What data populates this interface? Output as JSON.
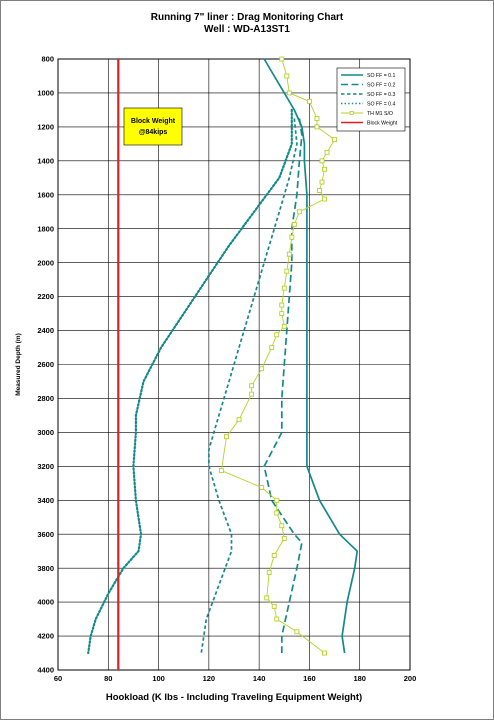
{
  "chart_data": {
    "type": "line",
    "title": "Running 7\" liner : Drag Monitoring Chart",
    "subtitle": "Well : WD-A13ST1",
    "xlabel": "Hookload (K lbs  - Including Traveling Equipment Weight)",
    "ylabel": "Measured Depth (m)",
    "xlim": [
      60,
      200
    ],
    "ylim": [
      800,
      4400
    ],
    "y_inverted": true,
    "x_ticks": [
      "60",
      "80",
      "100",
      "120",
      "140",
      "160",
      "180",
      "200"
    ],
    "y_ticks": [
      "800",
      "1000",
      "1200",
      "1400",
      "1600",
      "1800",
      "2000",
      "2200",
      "2400",
      "2600",
      "2800",
      "3000",
      "3200",
      "3400",
      "3600",
      "3800",
      "4000",
      "4200",
      "4400"
    ],
    "grid": true,
    "legend_position": "top-right",
    "annotation": {
      "line1": "Block Weight",
      "line2": "@84kips",
      "color": "#ffff00"
    },
    "colors": {
      "teal": "#138a8a",
      "actual": "#b5d12a",
      "block": "#e02020"
    },
    "series": [
      {
        "name": "SO FF = 0.1",
        "style": "solid",
        "color": "#138a8a",
        "points": [
          [
            142,
            800
          ],
          [
            146,
            900
          ],
          [
            150,
            1000
          ],
          [
            154,
            1100
          ],
          [
            157,
            1200
          ],
          [
            158,
            1300
          ],
          [
            158,
            1400
          ],
          [
            159,
            1600
          ],
          [
            159,
            1800
          ],
          [
            159,
            2000
          ],
          [
            159,
            2200
          ],
          [
            159,
            2400
          ],
          [
            159,
            2600
          ],
          [
            159,
            2800
          ],
          [
            159,
            3000
          ],
          [
            159,
            3200
          ],
          [
            164,
            3400
          ],
          [
            172,
            3600
          ],
          [
            179,
            3700
          ],
          [
            178,
            3800
          ],
          [
            175,
            4000
          ],
          [
            173,
            4200
          ],
          [
            174,
            4300
          ]
        ]
      },
      {
        "name": "SO FF = 0.2",
        "style": "dash",
        "color": "#138a8a",
        "points": [
          [
            156,
            1150
          ],
          [
            157,
            1250
          ],
          [
            156,
            1400
          ],
          [
            155,
            1600
          ],
          [
            153,
            1800
          ],
          [
            153,
            2000
          ],
          [
            152,
            2200
          ],
          [
            151,
            2400
          ],
          [
            150,
            2600
          ],
          [
            149,
            2800
          ],
          [
            149,
            3000
          ],
          [
            142,
            3200
          ],
          [
            145,
            3400
          ],
          [
            154,
            3600
          ],
          [
            157,
            3650
          ],
          [
            155,
            3800
          ],
          [
            152,
            4000
          ],
          [
            149,
            4200
          ],
          [
            149,
            4300
          ]
        ]
      },
      {
        "name": "SO FF = 0.3",
        "style": "shortdash",
        "color": "#138a8a",
        "points": [
          [
            154,
            1150
          ],
          [
            155,
            1300
          ],
          [
            152,
            1500
          ],
          [
            148,
            1700
          ],
          [
            144,
            1900
          ],
          [
            140,
            2100
          ],
          [
            136,
            2300
          ],
          [
            132,
            2500
          ],
          [
            128,
            2700
          ],
          [
            124,
            2900
          ],
          [
            120,
            3100
          ],
          [
            120,
            3200
          ],
          [
            124,
            3400
          ],
          [
            129,
            3600
          ],
          [
            129,
            3700
          ],
          [
            124,
            3900
          ],
          [
            119,
            4100
          ],
          [
            117,
            4300
          ]
        ]
      },
      {
        "name": "SO FF = 0.4",
        "style": "dot",
        "color": "#138a8a",
        "points": [
          [
            153,
            1100
          ],
          [
            153,
            1300
          ],
          [
            148,
            1500
          ],
          [
            138,
            1700
          ],
          [
            128,
            1900
          ],
          [
            119,
            2100
          ],
          [
            110,
            2300
          ],
          [
            101,
            2500
          ],
          [
            94,
            2700
          ],
          [
            91,
            2900
          ],
          [
            91,
            3000
          ],
          [
            90,
            3200
          ],
          [
            91,
            3400
          ],
          [
            93,
            3600
          ],
          [
            92,
            3700
          ],
          [
            86,
            3800
          ],
          [
            80,
            3950
          ],
          [
            75,
            4100
          ],
          [
            73,
            4200
          ],
          [
            72,
            4300
          ]
        ]
      },
      {
        "name": "TH M1 S/O",
        "style": "marker",
        "color": "#b5d12a",
        "points": [
          [
            149,
            800
          ],
          [
            151,
            900
          ],
          [
            152,
            1000
          ],
          [
            160,
            1050
          ],
          [
            163,
            1150
          ],
          [
            163,
            1200
          ],
          [
            170,
            1275
          ],
          [
            167,
            1350
          ],
          [
            165,
            1400
          ],
          [
            166,
            1450
          ],
          [
            165,
            1525
          ],
          [
            164,
            1575
          ],
          [
            166,
            1625
          ],
          [
            156,
            1700
          ],
          [
            154,
            1775
          ],
          [
            153,
            1850
          ],
          [
            152,
            1950
          ],
          [
            151,
            2050
          ],
          [
            150,
            2150
          ],
          [
            149,
            2250
          ],
          [
            149,
            2300
          ],
          [
            150,
            2375
          ],
          [
            147,
            2425
          ],
          [
            145,
            2500
          ],
          [
            141,
            2625
          ],
          [
            137,
            2725
          ],
          [
            137,
            2775
          ],
          [
            132,
            2925
          ],
          [
            127,
            3025
          ],
          [
            125,
            3225
          ],
          [
            141,
            3325
          ],
          [
            147,
            3400
          ],
          [
            147,
            3475
          ],
          [
            149,
            3550
          ],
          [
            150,
            3625
          ],
          [
            146,
            3725
          ],
          [
            144,
            3825
          ],
          [
            143,
            3975
          ],
          [
            146,
            4025
          ],
          [
            147,
            4100
          ],
          [
            155,
            4175
          ],
          [
            166,
            4300
          ]
        ]
      },
      {
        "name": "Block Weight",
        "style": "solid-red",
        "color": "#e02020",
        "points": [
          [
            84,
            800
          ],
          [
            84,
            4400
          ]
        ]
      }
    ]
  }
}
